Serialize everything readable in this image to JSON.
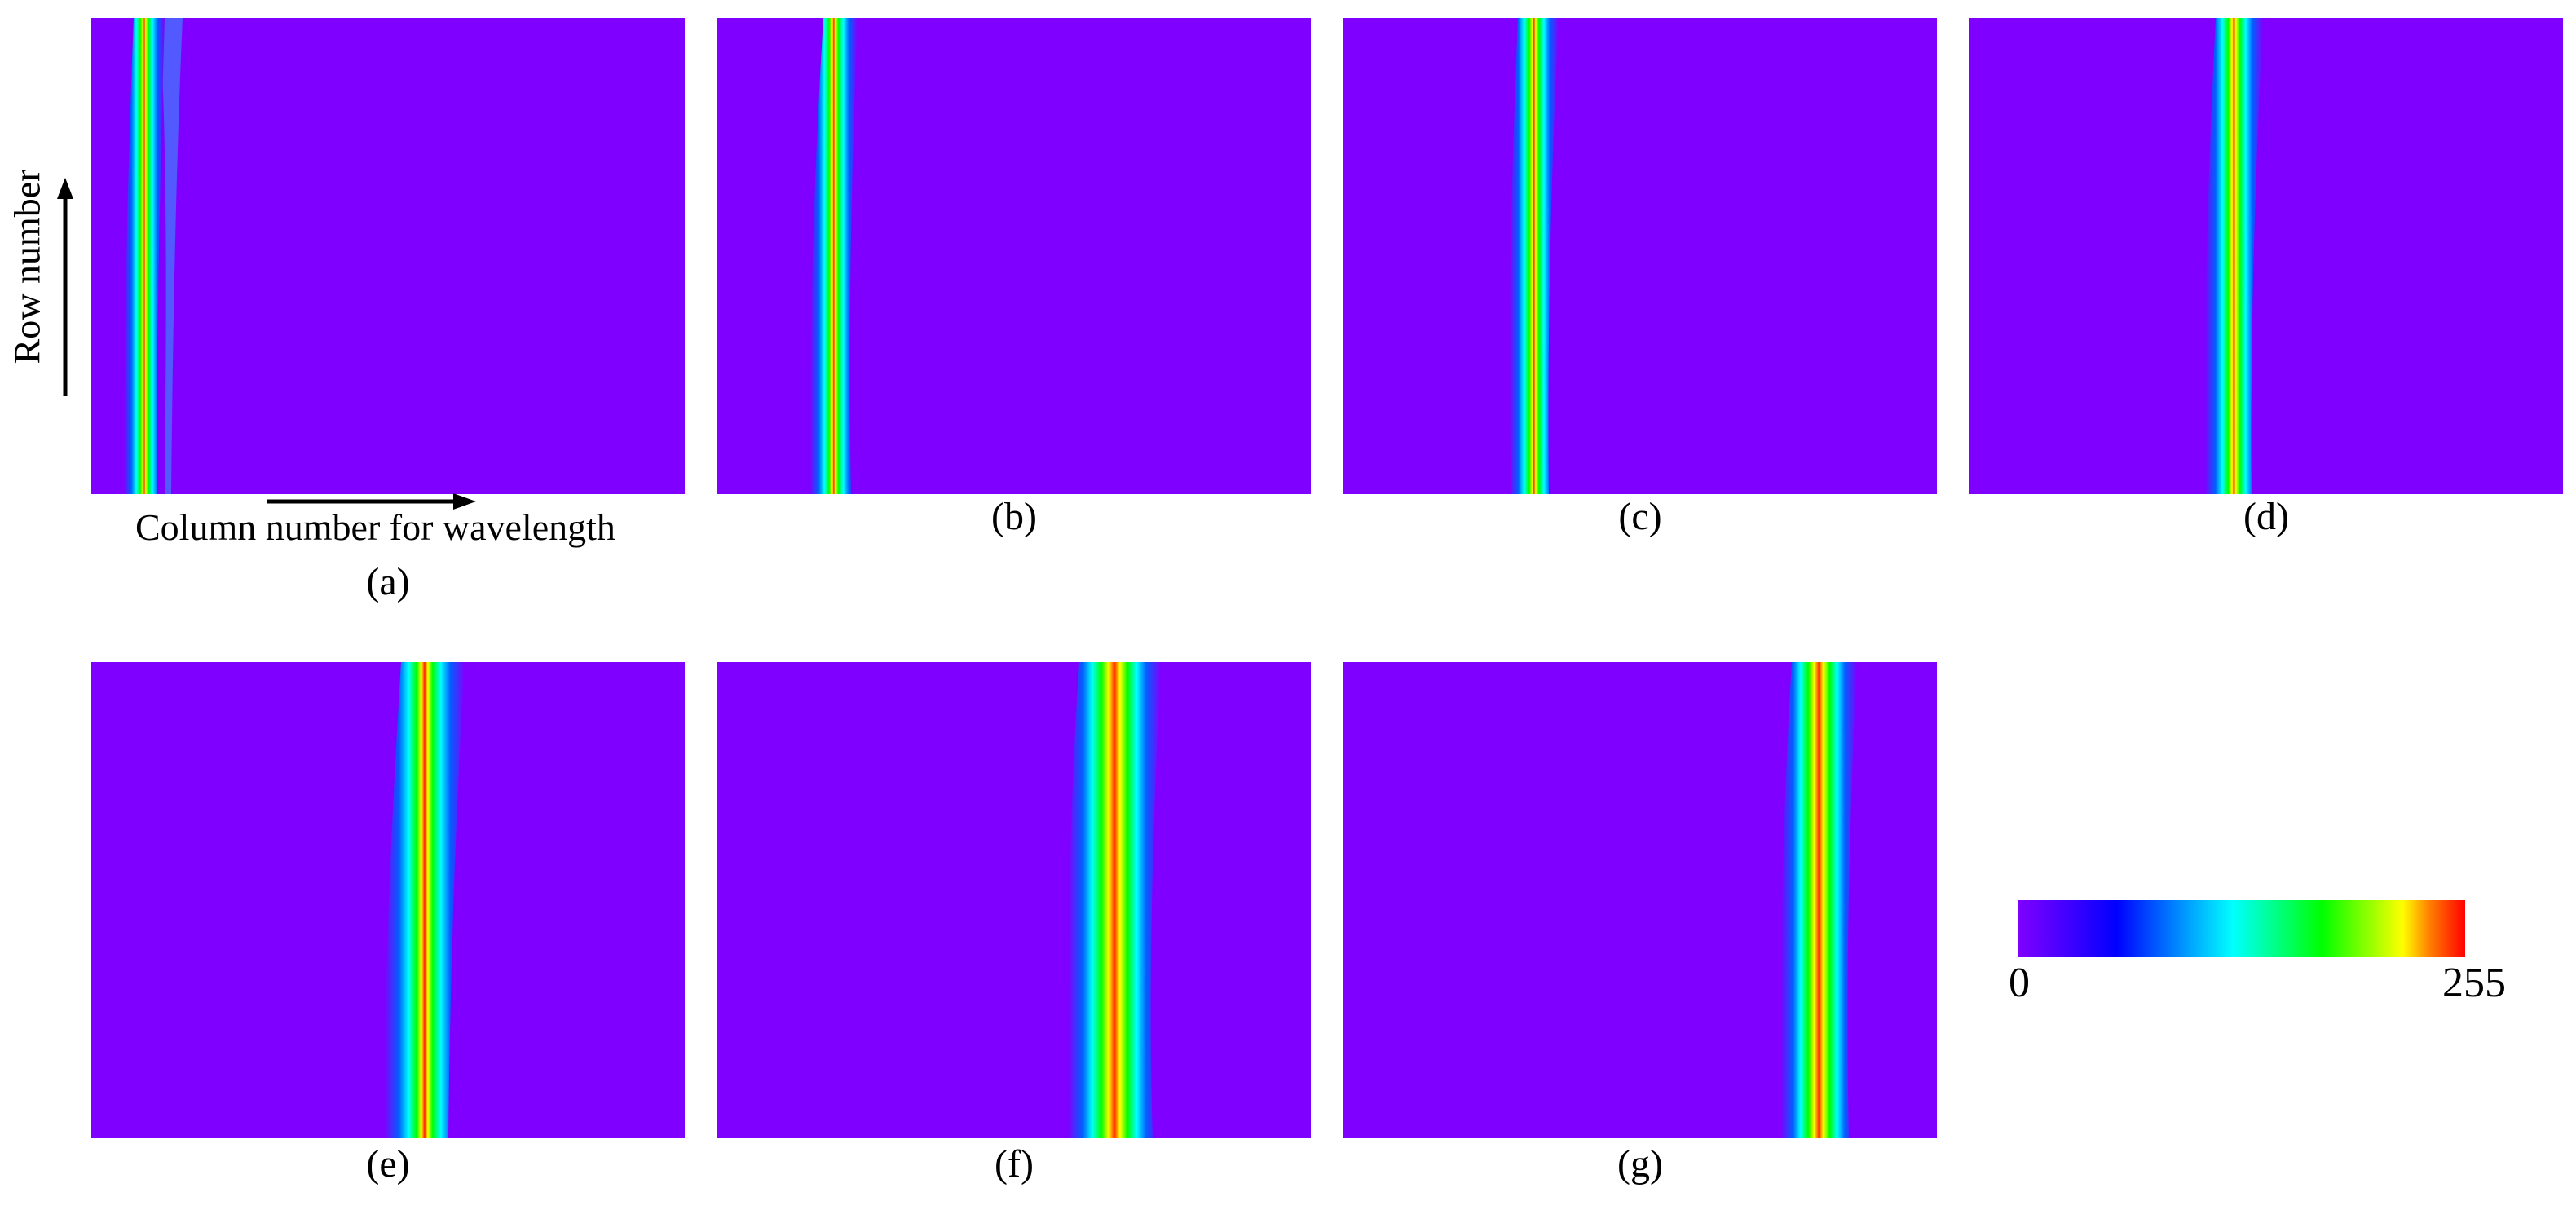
{
  "panels": [
    {
      "caption": "(a)"
    },
    {
      "caption": "(b)"
    },
    {
      "caption": "(c)"
    },
    {
      "caption": "(d)"
    },
    {
      "caption": "(e)"
    },
    {
      "caption": "(f)"
    },
    {
      "caption": "(g)"
    }
  ],
  "axes": {
    "row_label": "Row number",
    "column_label": "Column number for wavelength"
  },
  "colorbar": {
    "min_label": "0",
    "max_label": "255",
    "colors": [
      "#7f00ff",
      "#0000ff",
      "#00ffff",
      "#00ff00",
      "#ffff00",
      "#ff0000"
    ]
  },
  "background_color": "#7f00ff"
}
